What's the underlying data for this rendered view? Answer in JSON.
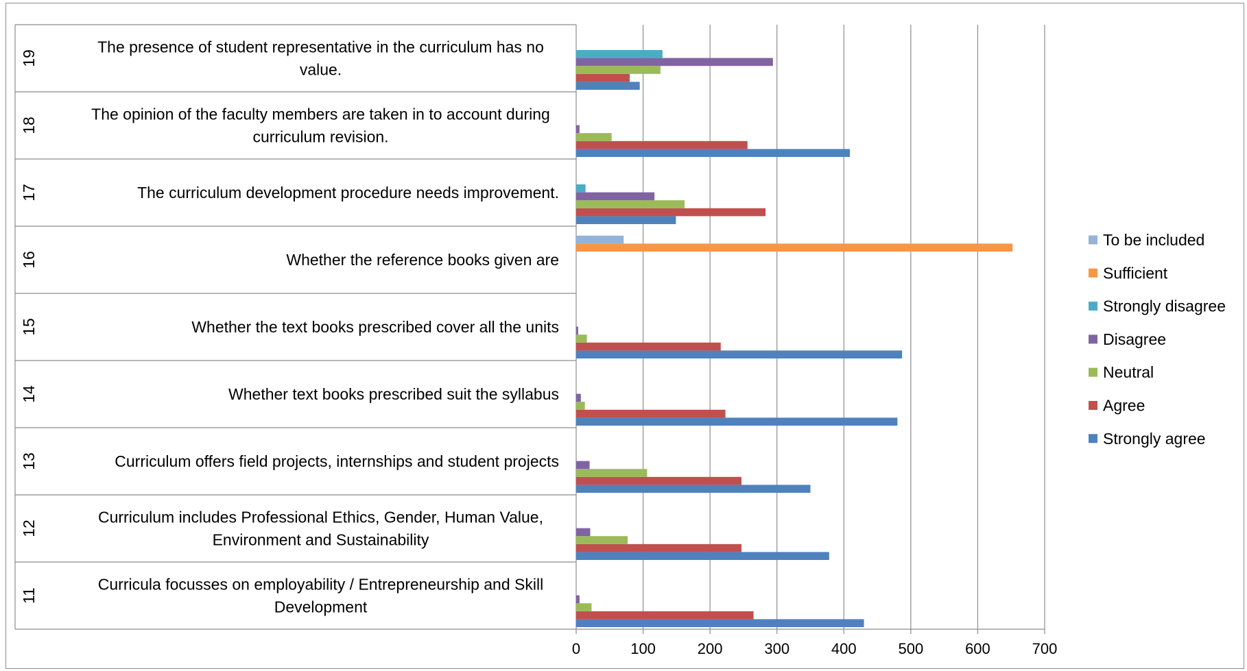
{
  "chart_data": {
    "type": "bar",
    "orientation": "horizontal",
    "categories": [
      {
        "id": "11",
        "label": [
          "Curricula focusses on employability / Entrepreneurship and Skill",
          "Development"
        ]
      },
      {
        "id": "12",
        "label": [
          "Curriculum includes Professional Ethics, Gender, Human Value,",
          "Environment and Sustainability"
        ]
      },
      {
        "id": "13",
        "label": [
          "Curriculum offers field projects, internships and student projects"
        ]
      },
      {
        "id": "14",
        "label": [
          "Whether text books prescribed suit the syllabus"
        ]
      },
      {
        "id": "15",
        "label": [
          "Whether the text books prescribed cover all the units"
        ]
      },
      {
        "id": "16",
        "label": [
          "Whether the reference books given are"
        ]
      },
      {
        "id": "17",
        "label": [
          "The curriculum development procedure needs improvement."
        ]
      },
      {
        "id": "18",
        "label": [
          "The opinion of the faculty members are taken in to account during",
          "curriculum revision."
        ]
      },
      {
        "id": "19",
        "label": [
          "The presence of student representative in the curriculum has no",
          "value."
        ]
      }
    ],
    "series": [
      {
        "name": "Strongly agree",
        "color": "#4f81bd",
        "values": [
          430,
          378,
          350,
          480,
          487,
          0,
          149,
          409,
          95
        ]
      },
      {
        "name": "Agree",
        "color": "#c0504d",
        "values": [
          265,
          247,
          247,
          223,
          216,
          0,
          283,
          256,
          80
        ]
      },
      {
        "name": "Neutral",
        "color": "#9bbb59",
        "values": [
          23,
          77,
          106,
          13,
          16,
          0,
          162,
          53,
          126
        ]
      },
      {
        "name": "Disagree",
        "color": "#8064a2",
        "values": [
          5,
          21,
          20,
          7,
          3,
          0,
          117,
          5,
          294
        ]
      },
      {
        "name": "Strongly disagree",
        "color": "#4bacc6",
        "values": [
          0,
          0,
          0,
          0,
          0,
          0,
          14,
          0,
          129
        ]
      },
      {
        "name": "Sufficient",
        "color": "#f79646",
        "values": [
          0,
          0,
          0,
          0,
          0,
          652,
          0,
          0,
          0
        ]
      },
      {
        "name": "To be included",
        "color": "#95b3d7",
        "values": [
          0,
          0,
          0,
          0,
          0,
          71,
          0,
          0,
          0
        ]
      }
    ],
    "xlim": [
      0,
      700
    ],
    "xticks": [
      0,
      100,
      200,
      300,
      400,
      500,
      600,
      700
    ],
    "grid": true,
    "legend_position": "right",
    "legend_order": [
      "To be included",
      "Sufficient",
      "Strongly disagree",
      "Disagree",
      "Neutral",
      "Agree",
      "Strongly agree"
    ]
  }
}
